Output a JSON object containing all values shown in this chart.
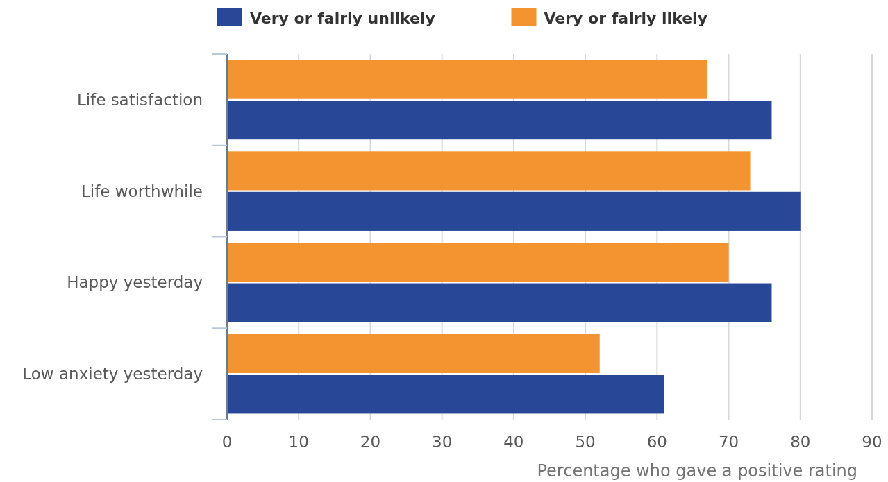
{
  "chart_data": {
    "type": "bar",
    "orientation": "horizontal",
    "xlabel": "Percentage who gave a positive rating",
    "categories": [
      "Life satisfaction",
      "Life worthwhile",
      "Happy yesterday",
      "Low anxiety yesterday"
    ],
    "series": [
      {
        "name": "Very or fairly unlikely",
        "color": "#284897",
        "values": [
          76,
          80,
          76,
          61
        ]
      },
      {
        "name": "Very or fairly likely",
        "color": "#f39431",
        "values": [
          67,
          73,
          70,
          52
        ]
      }
    ],
    "xlim": [
      0,
      90
    ],
    "xticks": [
      0,
      10,
      20,
      30,
      40,
      50,
      60,
      70,
      80,
      90
    ],
    "grid": "x",
    "legend": "top"
  }
}
